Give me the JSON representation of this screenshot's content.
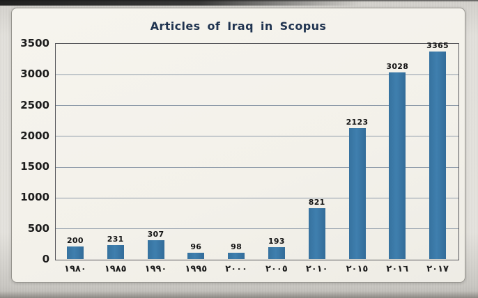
{
  "chart_data": {
    "type": "bar",
    "title": "Articles of Iraq in Scopus",
    "categories": [
      "١٩٨٠",
      "١٩٨٥",
      "١٩٩٠",
      "١٩٩٥",
      "٢٠٠٠",
      "٢٠٠٥",
      "٢٠١٠",
      "٢٠١٥",
      "٢٠١٦",
      "٢٠١٧"
    ],
    "values": [
      200,
      231,
      307,
      96,
      98,
      193,
      821,
      2123,
      3028,
      3365
    ],
    "xlabel": "",
    "ylabel": "",
    "ylim": [
      0,
      3500
    ],
    "yticks": [
      0,
      500,
      1000,
      1500,
      2000,
      2500,
      3000,
      3500
    ],
    "grid": true,
    "legend": "none",
    "bar_color": "#3a77a8",
    "grid_color": "#8d9aa8",
    "title_color": "#1f3350",
    "plot_background": "#f3f1ea"
  }
}
